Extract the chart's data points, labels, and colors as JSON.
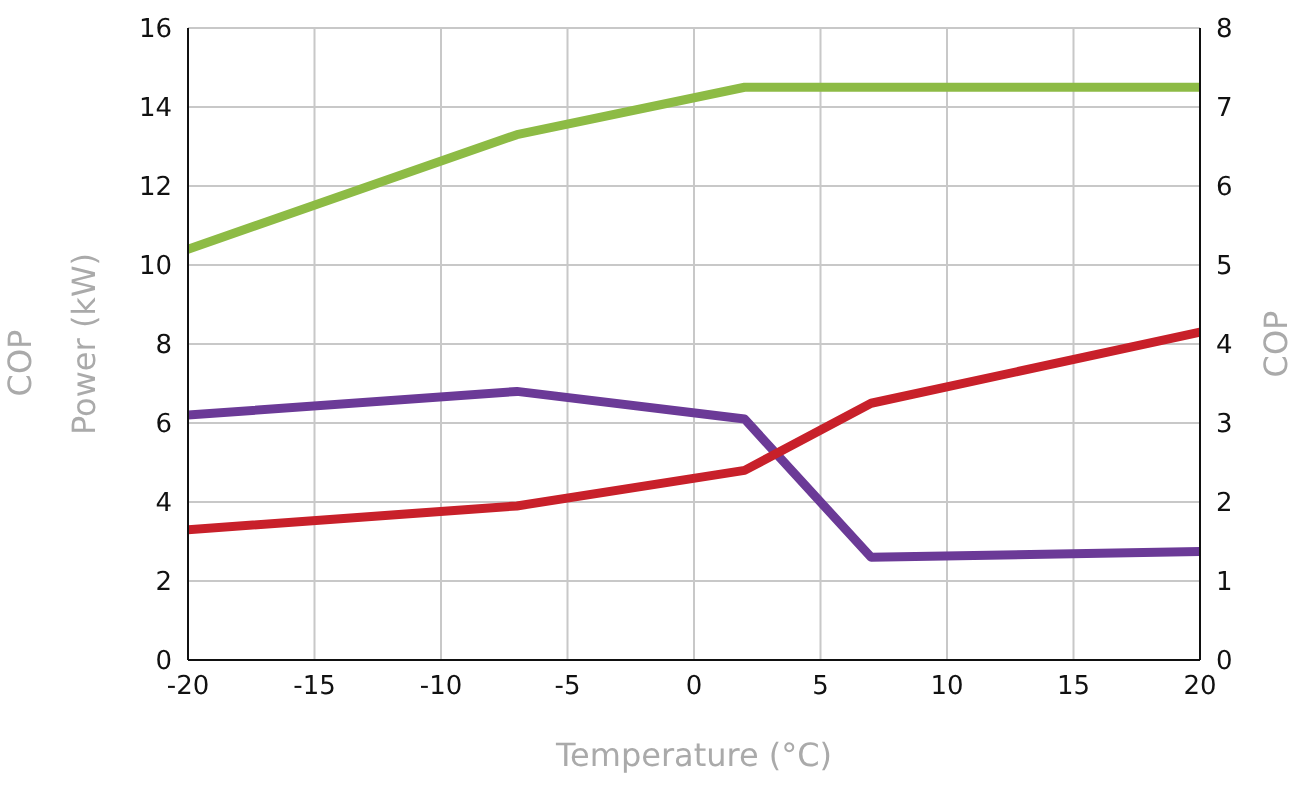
{
  "chart_data": {
    "type": "line",
    "xlabel": "Temperature (°C)",
    "ylabel": "Power (kW)",
    "y2label": "COP",
    "annotations": [
      "COP"
    ],
    "xlim": [
      -20,
      20
    ],
    "xticks": [
      -20,
      -15,
      -10,
      -5,
      0,
      5,
      10,
      15,
      20
    ],
    "ylim": [
      0,
      16
    ],
    "yticks": [
      0,
      2,
      4,
      6,
      8,
      10,
      12,
      14,
      16
    ],
    "y2lim": [
      0,
      8
    ],
    "y2ticks": [
      0,
      1,
      2,
      3,
      4,
      5,
      6,
      7,
      8
    ],
    "grid": true,
    "marker": "none",
    "line_style": "solid",
    "series": [
      {
        "color": "#8dbb45",
        "x": [
          -20,
          -7,
          2,
          20
        ],
        "values": [
          10.4,
          13.3,
          14.5,
          14.5
        ]
      },
      {
        "color": "#6b3a97",
        "x": [
          -20,
          -7,
          2,
          7,
          20
        ],
        "values": [
          6.2,
          6.8,
          6.1,
          2.6,
          2.75
        ]
      },
      {
        "color": "#c8202a",
        "x": [
          -20,
          -7,
          2,
          7,
          20
        ],
        "values": [
          3.3,
          3.9,
          4.8,
          6.5,
          8.3
        ]
      }
    ]
  }
}
